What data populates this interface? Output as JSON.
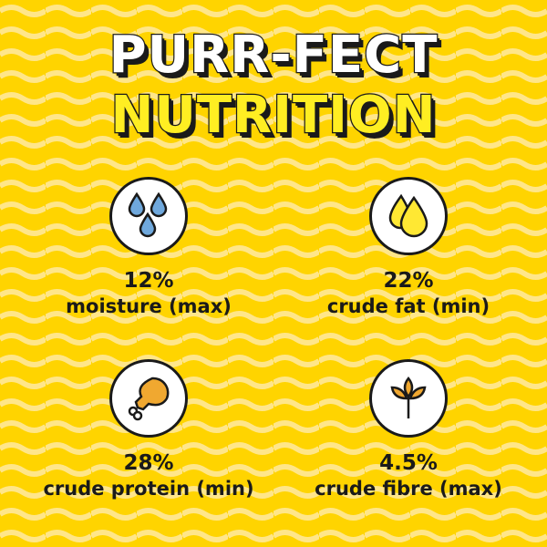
{
  "title": {
    "line1": "PURR-FECT",
    "line2": "NUTRITION"
  },
  "colors": {
    "background": "#FFD400",
    "wave": "#FFE68A",
    "title_line1": "#FFFFFF",
    "title_line2": "#FFEE22",
    "text": "#1A1A1A"
  },
  "nutrients": [
    {
      "value": "12%",
      "label": "moisture (max)",
      "icon": "water-drops-icon"
    },
    {
      "value": "22%",
      "label": "crude fat (min)",
      "icon": "oil-drops-icon"
    },
    {
      "value": "28%",
      "label": "crude protein (min)",
      "icon": "chicken-leg-icon"
    },
    {
      "value": "4.5%",
      "label": "crude fibre (max)",
      "icon": "wheat-icon"
    }
  ]
}
